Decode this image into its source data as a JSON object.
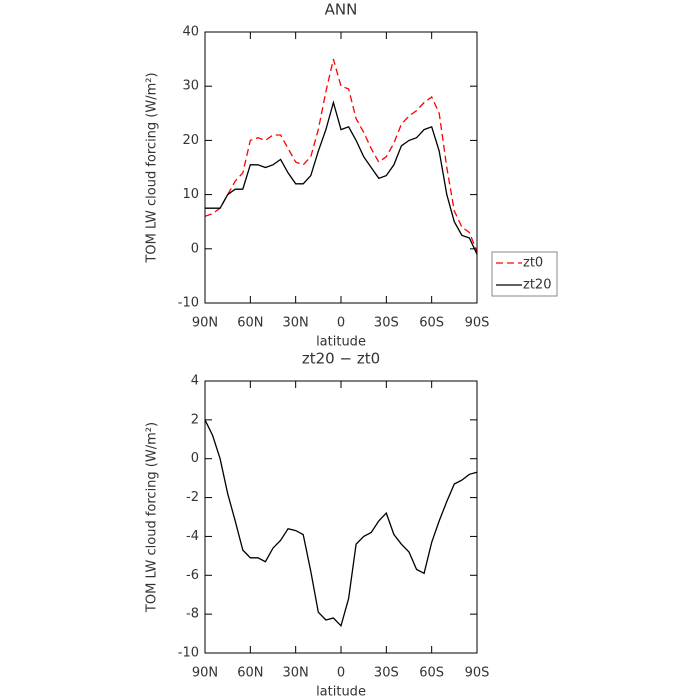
{
  "chart_data": [
    {
      "type": "line",
      "title": "ANN",
      "xlabel": "latitude",
      "ylabel": "TOM LW cloud forcing (W/m²)",
      "x": [
        90,
        85,
        80,
        75,
        70,
        65,
        60,
        55,
        50,
        45,
        40,
        35,
        30,
        25,
        20,
        15,
        10,
        5,
        0,
        -5,
        -10,
        -15,
        -20,
        -25,
        -30,
        -35,
        -40,
        -45,
        -50,
        -55,
        -60,
        -65,
        -70,
        -75,
        -80,
        -85,
        -90
      ],
      "series": [
        {
          "name": "zt0",
          "color": "#ff0000",
          "dash": "dashed",
          "values": [
            6,
            6.5,
            7.5,
            10,
            12.5,
            14,
            20,
            20.5,
            20,
            21,
            21,
            18.5,
            16,
            15.5,
            17,
            22,
            29,
            35,
            30,
            29.5,
            24,
            21.5,
            18.5,
            16,
            17,
            19.5,
            23,
            24.5,
            25.5,
            27,
            28,
            25,
            15,
            7,
            4,
            3,
            -0.5
          ]
        },
        {
          "name": "zt20",
          "color": "#000000",
          "dash": "solid",
          "values": [
            7.5,
            7.5,
            7.5,
            10,
            11,
            11,
            15.5,
            15.5,
            15,
            15.5,
            16.5,
            14,
            12,
            12,
            13.5,
            18,
            22,
            27,
            22,
            22.5,
            20,
            17,
            15,
            13,
            13.5,
            15.5,
            19,
            20,
            20.5,
            22,
            22.5,
            18,
            10,
            5,
            2.5,
            2,
            -1
          ]
        }
      ],
      "xlim": [
        90,
        -90
      ],
      "xticks": [
        {
          "value": 90,
          "label": "90N"
        },
        {
          "value": 60,
          "label": "60N"
        },
        {
          "value": 30,
          "label": "30N"
        },
        0,
        {
          "value": -30,
          "label": "30S"
        },
        {
          "value": -60,
          "label": "60S"
        },
        {
          "value": -90,
          "label": "90S"
        }
      ],
      "ylim": [
        -10,
        40
      ],
      "yticks": [
        -10,
        0,
        10,
        20,
        30,
        40
      ],
      "legend": "right"
    },
    {
      "type": "line",
      "title": "zt20 − zt0",
      "xlabel": "latitude",
      "ylabel": "TOM LW cloud forcing (W/m²)",
      "x": [
        90,
        85,
        80,
        75,
        70,
        65,
        60,
        55,
        50,
        45,
        40,
        35,
        30,
        25,
        20,
        15,
        10,
        5,
        0,
        -5,
        -10,
        -15,
        -20,
        -25,
        -30,
        -35,
        -40,
        -45,
        -50,
        -55,
        -60,
        -65,
        -70,
        -75,
        -80,
        -85,
        -90
      ],
      "series": [
        {
          "color": "#000000",
          "dash": "solid",
          "values": [
            2,
            1.2,
            0,
            -1.8,
            -3.2,
            -4.7,
            -5.1,
            -5.1,
            -5.3,
            -4.6,
            -4.2,
            -3.6,
            -3.7,
            -3.9,
            -5.8,
            -7.9,
            -8.3,
            -8.2,
            -8.6,
            -7.2,
            -4.4,
            -4,
            -3.8,
            -3.2,
            -2.8,
            -3.9,
            -4.4,
            -4.8,
            -5.7,
            -5.9,
            -4.3,
            -3.2,
            -2.2,
            -1.3,
            -1.1,
            -0.8,
            -0.7
          ]
        }
      ],
      "xlim": [
        90,
        -90
      ],
      "xticks": [
        {
          "value": 90,
          "label": "90N"
        },
        {
          "value": 60,
          "label": "60N"
        },
        {
          "value": 30,
          "label": "30N"
        },
        0,
        {
          "value": -30,
          "label": "30S"
        },
        {
          "value": -60,
          "label": "60S"
        },
        {
          "value": -90,
          "label": "90S"
        }
      ],
      "ylim": [
        -10,
        4
      ],
      "yticks": [
        -10,
        -8,
        -6,
        -4,
        -2,
        0,
        2,
        4
      ]
    }
  ]
}
